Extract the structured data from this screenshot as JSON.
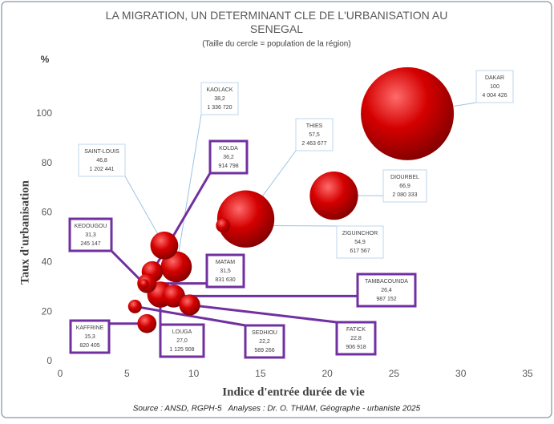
{
  "chart_data": {
    "type": "bubble",
    "title": "LA MIGRATION, UN DETERMINANT CLE DE L'URBANISATION AU SENEGAL",
    "subtitle": "(Taille du cercle = population de la région)",
    "y_unit": "%",
    "y_label": "Taux d'urbanisation",
    "x_label": "Indice d'entrée durée de vie",
    "source": "Source : ANSD, RGPH-5   Analyses : Dr. O. THIAM, Géographe - urbaniste 2025",
    "color": "#c00000",
    "categories": [
      "DAKAR",
      "KAOLACK",
      "THIES",
      "SAINT-LOUIS",
      "KOLDA",
      "DIOURBEL",
      "KEDOUGOU",
      "ZIGUINCHOR",
      "MATAM",
      "TAMBACOUNDA",
      "KAFFRINE",
      "LOUGA",
      "SEDHIOU",
      "FATICK"
    ],
    "x": [
      26.0,
      8.7,
      13.9,
      7.8,
      6.9,
      20.5,
      6.3,
      12.2,
      6.5,
      8.5,
      6.5,
      7.5,
      5.6,
      9.7
    ],
    "values": [
      100,
      38.2,
      57.5,
      46.8,
      36.2,
      66.9,
      31.3,
      54.9,
      31.5,
      26.4,
      15.3,
      27.0,
      22.2,
      22.8
    ],
    "value_labels": [
      "100",
      "38,2",
      "57,5",
      "46,8",
      "36,2",
      "66,9",
      "31,3",
      "54,9",
      "31,5",
      "26,4",
      "15,3",
      "27,0",
      "22,2",
      "22,8"
    ],
    "sizes": [
      4004426,
      1336720,
      2463677,
      1202441,
      914798,
      2080333,
      245147,
      617567,
      831630,
      987152,
      820405,
      1125908,
      589266,
      906918
    ],
    "size_labels": [
      "4 004 426",
      "1 336 720",
      "2 463 677",
      "1 202 441",
      "914 798",
      "2 080 333",
      "245 147",
      "617 567",
      "831 630",
      "987 152",
      "820 405",
      "1 125 908",
      "589 266",
      "906 918"
    ],
    "xlim": [
      0,
      35
    ],
    "xticks": [
      0,
      5,
      10,
      15,
      20,
      25,
      30,
      35
    ],
    "ylim": [
      0,
      120
    ],
    "yticks": [
      0,
      20,
      40,
      60,
      80,
      100
    ]
  }
}
